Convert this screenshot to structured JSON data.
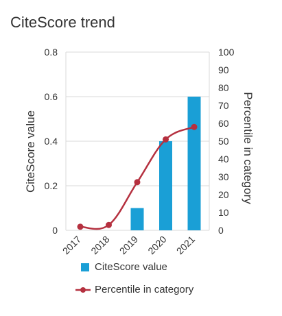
{
  "title": "CiteScore trend",
  "chart_data": {
    "type": "bar",
    "title": "CiteScore trend",
    "categories": [
      "2017",
      "2018",
      "2019",
      "2020",
      "2021"
    ],
    "series": [
      {
        "name": "CiteScore value",
        "kind": "bar",
        "axis": "left",
        "color": "#1a9fd6",
        "values": [
          0,
          0,
          0.1,
          0.4,
          0.6
        ]
      },
      {
        "name": "Percentile in category",
        "kind": "line",
        "axis": "right",
        "color": "#b5303f",
        "values": [
          2,
          3,
          27,
          51,
          58
        ]
      }
    ],
    "ylabel": "CiteScore value",
    "ylim": [
      0,
      0.8
    ],
    "yticks": [
      "0",
      "0.2",
      "0.4",
      "0.6",
      "0.8"
    ],
    "y2label": "Percentile in category",
    "y2lim": [
      0,
      100
    ],
    "y2ticks": [
      "0",
      "10",
      "20",
      "30",
      "40",
      "50",
      "60",
      "70",
      "80",
      "90",
      "100"
    ],
    "xlabel": "",
    "grid": "horizontal",
    "legend": "bottom"
  }
}
